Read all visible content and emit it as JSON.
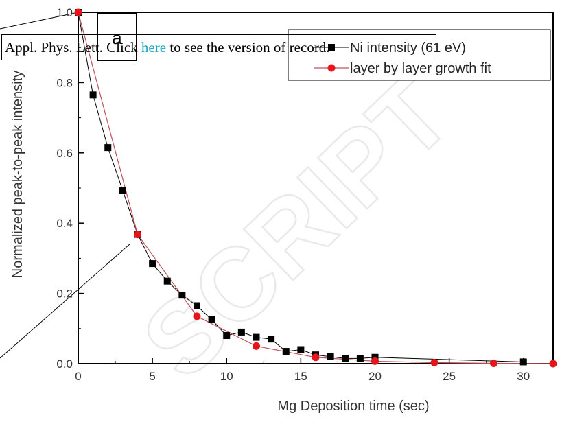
{
  "banner": {
    "prefix": "Appl. Phys. Lett. Click ",
    "link": "here",
    "suffix": " to see the version of record."
  },
  "panel_label": "a",
  "watermark": "SCRIPT",
  "colors": {
    "series1": "#000000",
    "series2": "#e8141b",
    "fit_line": "#c0505a"
  },
  "chart_data": {
    "type": "scatter",
    "xlabel": "Mg Deposition time (sec)",
    "ylabel": "Normalized peak-to-peak intensity",
    "xlim": [
      0,
      32
    ],
    "ylim": [
      0,
      1.0
    ],
    "xticks": [
      0,
      5,
      10,
      15,
      20,
      25,
      30
    ],
    "yticks": [
      0.0,
      0.2,
      0.4,
      0.6,
      0.8,
      1.0
    ],
    "ytick_labels": [
      "0.0",
      "0.2",
      "0.4",
      "0.6",
      "0.8",
      "1.0"
    ],
    "legend_position": "top-right",
    "series": [
      {
        "name": "Ni intensity (61 eV)",
        "marker": "square",
        "x": [
          0,
          1,
          2,
          3,
          4,
          5,
          6,
          7,
          8,
          9,
          10,
          11,
          12,
          13,
          14,
          15,
          16,
          17,
          18,
          19,
          20,
          30
        ],
        "y": [
          1.0,
          0.765,
          0.615,
          0.493,
          0.368,
          0.285,
          0.235,
          0.195,
          0.165,
          0.125,
          0.08,
          0.09,
          0.075,
          0.07,
          0.035,
          0.04,
          0.025,
          0.02,
          0.015,
          0.015,
          0.018,
          0.005
        ]
      },
      {
        "name": "layer by layer growth fit",
        "marker": "circle",
        "x": [
          0,
          4,
          8,
          12,
          16,
          20,
          24,
          28,
          32
        ],
        "y": [
          1.0,
          0.368,
          0.135,
          0.05,
          0.018,
          0.007,
          0.003,
          0.001,
          0.0
        ]
      }
    ]
  }
}
